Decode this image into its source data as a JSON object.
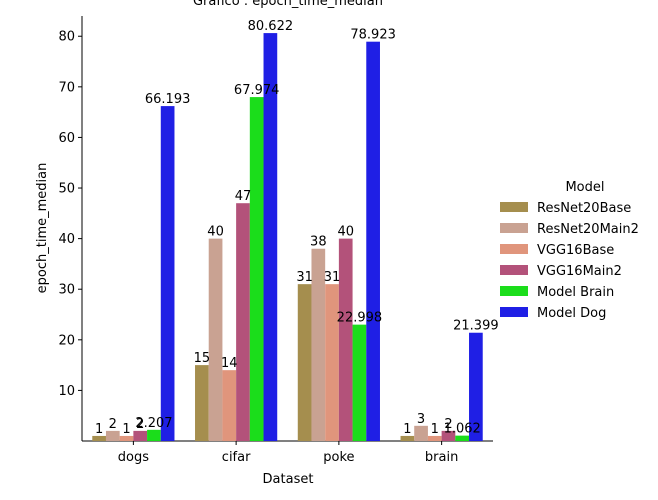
{
  "chart_data": {
    "type": "bar",
    "title": "Gráfico : epoch_time_median",
    "xlabel": "Dataset",
    "ylabel": "epoch_time_median",
    "ylim": [
      0,
      84
    ],
    "yticks": [
      10,
      20,
      30,
      40,
      50,
      60,
      70,
      80
    ],
    "categories": [
      "dogs",
      "cifar",
      "poke",
      "brain"
    ],
    "legend": {
      "title": "Model",
      "placement": "right"
    },
    "series": [
      {
        "name": "ResNet20Base",
        "color": "#a58e4e",
        "values": [
          1,
          15,
          31,
          1
        ],
        "labels": [
          "1",
          "15",
          "31",
          "1"
        ]
      },
      {
        "name": "ResNet20Main2",
        "color": "#c9a292",
        "values": [
          2,
          40,
          38,
          3
        ],
        "labels": [
          "2",
          "40",
          "38",
          "3"
        ]
      },
      {
        "name": "VGG16Base",
        "color": "#e0957c",
        "values": [
          1,
          14,
          31,
          1
        ],
        "labels": [
          "1",
          "14",
          "31",
          "1"
        ]
      },
      {
        "name": "VGG16Main2",
        "color": "#b3527a",
        "values": [
          2,
          47,
          40,
          2
        ],
        "labels": [
          "2",
          "47",
          "40",
          "2"
        ]
      },
      {
        "name": "Model Brain",
        "color": "#1bdd1b",
        "values": [
          2.207,
          67.974,
          22.998,
          1.062
        ],
        "labels": [
          "2.207",
          "67.974",
          "22.998",
          "1.062"
        ]
      },
      {
        "name": "Model Dog",
        "color": "#1f1fe5",
        "values": [
          66.193,
          80.622,
          78.923,
          21.399
        ],
        "labels": [
          "66.193",
          "80.622",
          "78.923",
          "21.399"
        ]
      }
    ]
  }
}
